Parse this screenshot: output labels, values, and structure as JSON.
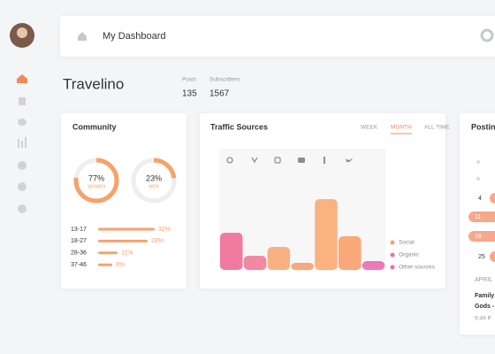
{
  "header": {
    "title": "My Dashboard"
  },
  "profile": {
    "name": "Travelino",
    "stats": [
      {
        "label": "Posts",
        "value": 135
      },
      {
        "label": "Subscribers",
        "value": 1567
      }
    ]
  },
  "community": {
    "title": "Community",
    "gender": [
      {
        "value": 77,
        "value_label": "77%",
        "label": "WOMEN"
      },
      {
        "value": 23,
        "value_label": "23%",
        "label": "MEN"
      }
    ],
    "color": "#f6a26c",
    "ages": [
      {
        "label": "13-17",
        "value": 32,
        "value_label": "32%"
      },
      {
        "label": "18-27",
        "value": 28,
        "value_label": "28%"
      },
      {
        "label": "28-36",
        "value": 11,
        "value_label": "11%"
      },
      {
        "label": "37-46",
        "value": 8,
        "value_label": "8%"
      }
    ]
  },
  "traffic": {
    "title": "Traffic Sources",
    "tabs": [
      "WEEK",
      "MONTH",
      "ALL TIME"
    ],
    "active_tab": 1,
    "bars": {
      "values": [
        42,
        16,
        26,
        8,
        80,
        38,
        10
      ],
      "colors": [
        "#f07aa0",
        "#f08aa0",
        "#f9b184",
        "#f9a87a",
        "#fbb27f",
        "#f9a87a",
        "#ec7ab8"
      ]
    },
    "legend": [
      {
        "name": "Social",
        "color": "#f6a26c"
      },
      {
        "name": "Organic",
        "color": "#ee6f95"
      },
      {
        "name": "Other sources",
        "color": "#e46fb6"
      }
    ]
  },
  "posting": {
    "title": "Posting",
    "days": [
      {
        "label": "4",
        "mark": "dot"
      },
      {
        "label": "11",
        "mark": "pill"
      },
      {
        "label": "18",
        "mark": "pill"
      },
      {
        "label": "25",
        "mark": "dot"
      }
    ],
    "month": "APRIL",
    "event": [
      "Family",
      "Gods -"
    ],
    "time": "9:49 P"
  }
}
